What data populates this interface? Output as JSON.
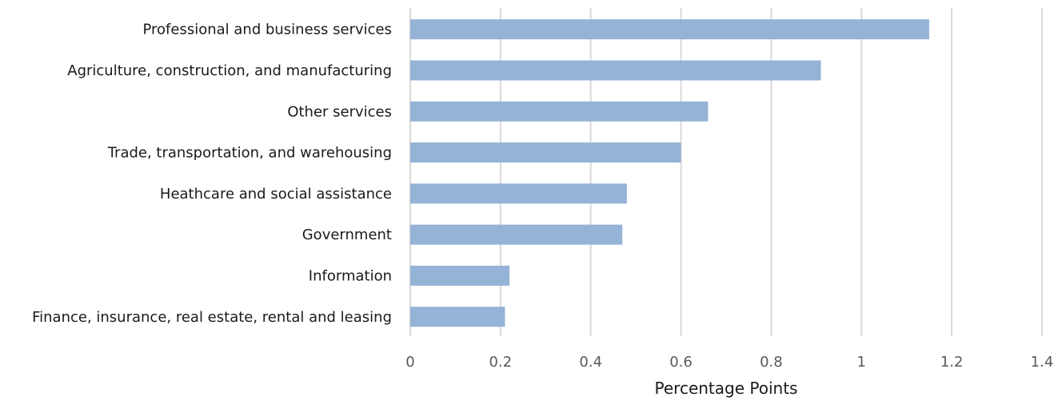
{
  "chart_data": {
    "type": "bar",
    "orientation": "horizontal",
    "categories": [
      "Professional and business services",
      "Agriculture, construction, and manufacturing",
      "Other services",
      "Trade, transportation, and warehousing",
      "Heathcare and social assistance",
      "Government",
      "Information",
      "Finance, insurance, real estate, rental and leasing"
    ],
    "values": [
      1.15,
      0.91,
      0.66,
      0.6,
      0.48,
      0.47,
      0.22,
      0.21
    ],
    "title": "",
    "xlabel": "Percentage Points",
    "ylabel": "",
    "xlim": [
      0,
      1.4
    ],
    "xticks": [
      0,
      0.2,
      0.4,
      0.6,
      0.8,
      1,
      1.2,
      1.4
    ],
    "xtick_labels": [
      "0",
      "0.2",
      "0.4",
      "0.6",
      "0.8",
      "1",
      "1.2",
      "1.4"
    ],
    "grid": "vertical",
    "legend": "none",
    "bar_color": "#95b3d7",
    "grid_color": "#d9d9d9"
  }
}
